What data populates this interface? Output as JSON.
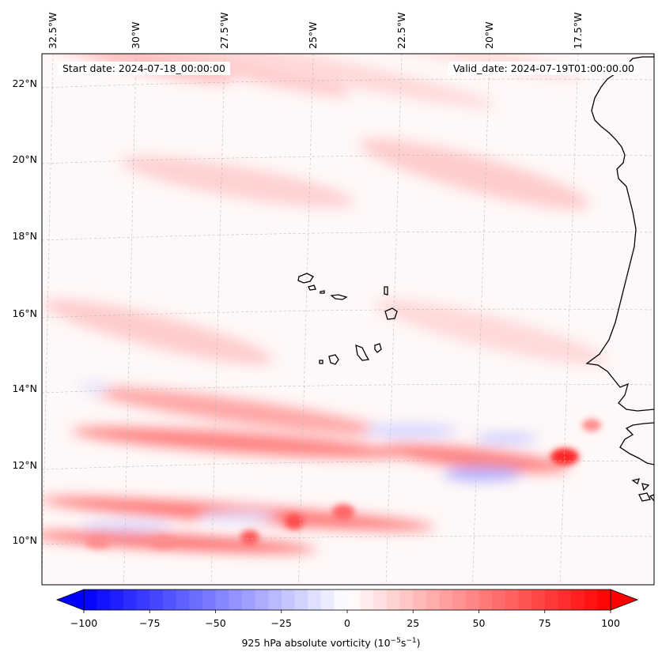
{
  "header": {
    "start_date": "Start date: 2024-07-18_00:00:00",
    "valid_date": "Valid_date: 2024-07-19T01:00:00.00"
  },
  "map": {
    "region": "Eastern tropical North Atlantic / Cape Verde",
    "lon_ticks": [
      "32.5°W",
      "30°W",
      "27.5°W",
      "25°W",
      "22.5°W",
      "20°W",
      "17.5°W"
    ],
    "lat_ticks": [
      "22°N",
      "20°N",
      "18°N",
      "16°N",
      "14°N",
      "12°N",
      "10°N"
    ],
    "gridlines": true,
    "coastline_color": "#000000"
  },
  "colorbar": {
    "min": -100,
    "max": 100,
    "ticks": [
      "−100",
      "−75",
      "−50",
      "−25",
      "0",
      "25",
      "50",
      "75",
      "100"
    ],
    "label_prefix": "925 hPa absolute vorticity (10",
    "label_exp1": "−5",
    "label_mid": "s",
    "label_exp2": "−1",
    "label_suffix": ")",
    "colormap": "bwr",
    "color_min": "#0000ff",
    "color_mid": "#ffffff",
    "color_max": "#ff0000"
  }
}
